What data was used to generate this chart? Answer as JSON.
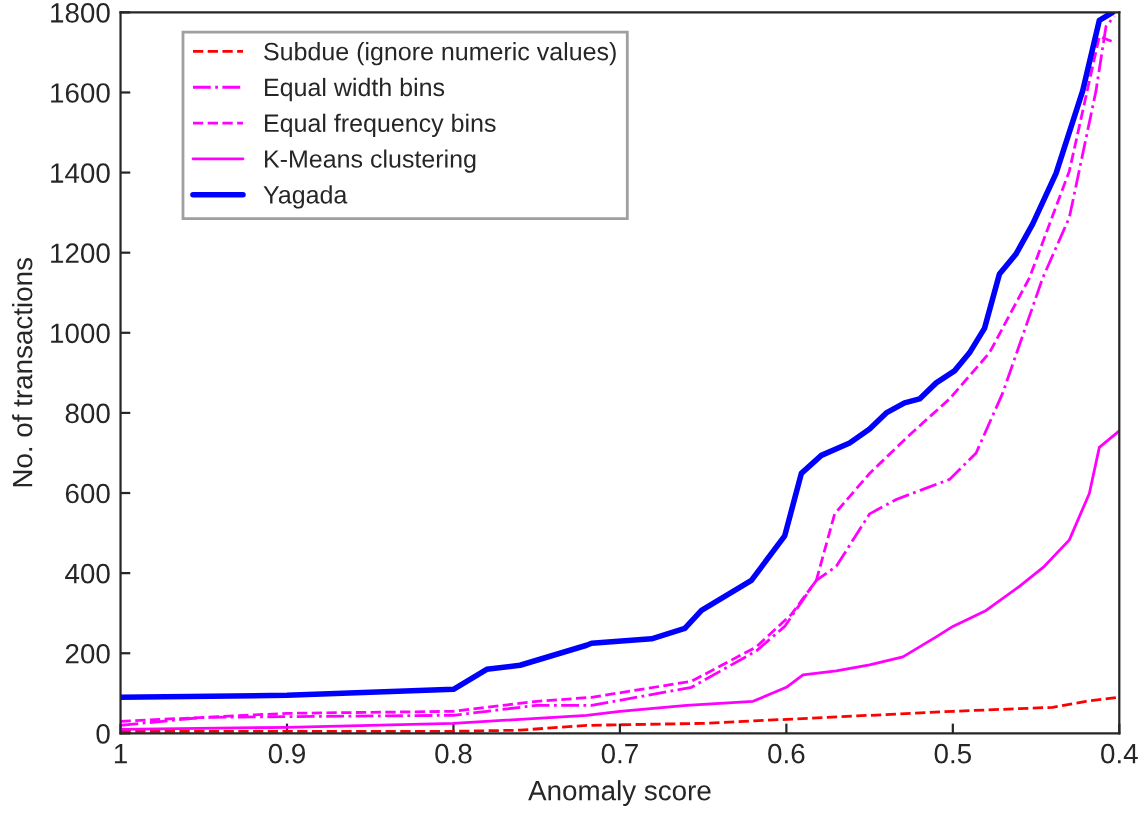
{
  "chart_data": {
    "type": "line",
    "xlabel": "Anomaly score",
    "ylabel": "No. of transactions",
    "xlim": [
      1,
      0.4
    ],
    "xticks": [
      1,
      0.9,
      0.8,
      0.7,
      0.6,
      0.5,
      0.4
    ],
    "ylim": [
      0,
      1800
    ],
    "yticks": [
      0,
      200,
      400,
      600,
      800,
      1000,
      1200,
      1400,
      1600,
      1800
    ],
    "grid": false,
    "legend": "top left",
    "series": [
      {
        "name": "Subdue (ignore numeric values)",
        "color": "#ff0000",
        "line_style": "dashed",
        "x": [
          1,
          0.9,
          0.8,
          0.76,
          0.72,
          0.65,
          0.6,
          0.5,
          0.44,
          0.42,
          0.4
        ],
        "values": [
          5,
          5,
          5,
          8,
          20,
          25,
          35,
          55,
          65,
          80,
          90
        ]
      },
      {
        "name": "Equal width bins",
        "color": "#ff00ff",
        "line_style": "dashdot",
        "x": [
          1,
          0.95,
          0.8,
          0.75,
          0.717,
          0.657,
          0.618,
          0.601,
          0.582,
          0.57,
          0.55,
          0.534,
          0.518,
          0.502,
          0.486,
          0.47,
          0.446,
          0.43,
          0.414,
          0.408,
          0.403
        ],
        "values": [
          20,
          40,
          45,
          70,
          70,
          115,
          206,
          267,
          382,
          417,
          548,
          584,
          609,
          634,
          700,
          850,
          1137,
          1288,
          1604,
          1765,
          1790
        ]
      },
      {
        "name": "Equal frequency bins",
        "color": "#ff00ff",
        "line_style": "dashed",
        "x": [
          1,
          0.9,
          0.8,
          0.75,
          0.717,
          0.657,
          0.618,
          0.597,
          0.582,
          0.571,
          0.55,
          0.526,
          0.502,
          0.478,
          0.454,
          0.43,
          0.412,
          0.403
        ],
        "values": [
          30,
          50,
          55,
          80,
          90,
          130,
          216,
          297,
          382,
          548,
          649,
          745,
          835,
          950,
          1137,
          1404,
          1740,
          1725
        ]
      },
      {
        "name": "K-Means clustering",
        "color": "#ff00ff",
        "line_style": "solid",
        "x": [
          1,
          0.9,
          0.8,
          0.72,
          0.7,
          0.66,
          0.62,
          0.6,
          0.59,
          0.57,
          0.55,
          0.53,
          0.51,
          0.5,
          0.48,
          0.46,
          0.445,
          0.43,
          0.418,
          0.412,
          0.4
        ],
        "values": [
          10,
          15,
          25,
          45,
          55,
          70,
          80,
          115,
          146,
          156,
          171,
          191,
          241,
          267,
          307,
          367,
          417,
          483,
          599,
          714,
          755
        ]
      },
      {
        "name": "Yagada",
        "color": "#0000ff",
        "line_style": "solid",
        "x": [
          1,
          0.9,
          0.8,
          0.78,
          0.76,
          0.72,
          0.717,
          0.681,
          0.661,
          0.651,
          0.621,
          0.601,
          0.591,
          0.579,
          0.562,
          0.55,
          0.54,
          0.529,
          0.52,
          0.51,
          0.499,
          0.49,
          0.481,
          0.472,
          0.462,
          0.452,
          0.438,
          0.422,
          0.412,
          0.404
        ],
        "values": [
          90,
          95,
          110,
          160,
          170,
          220,
          225,
          236,
          262,
          307,
          382,
          493,
          649,
          694,
          725,
          760,
          800,
          825,
          835,
          875,
          905,
          950,
          1011,
          1147,
          1197,
          1272,
          1398,
          1604,
          1780,
          1800
        ]
      }
    ]
  }
}
